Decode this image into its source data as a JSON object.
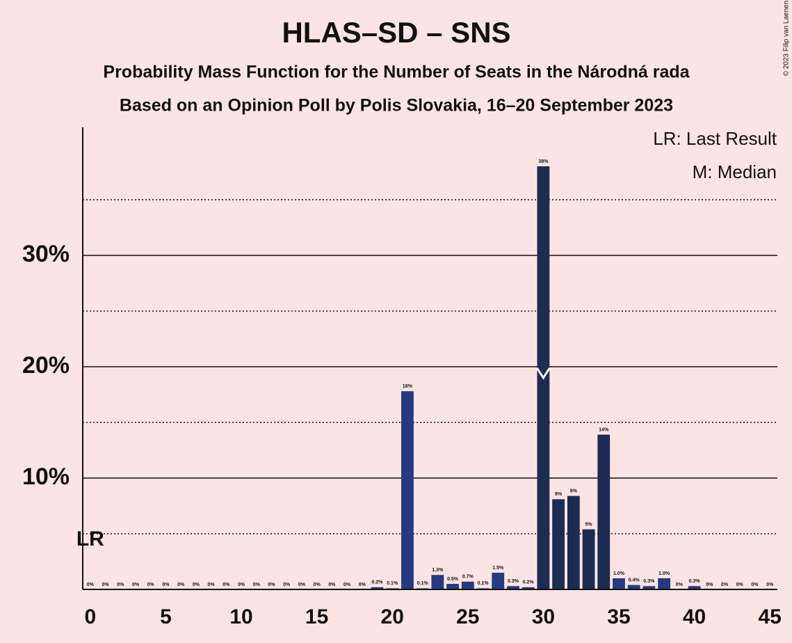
{
  "chart_data": {
    "type": "bar",
    "title": "HLAS–SD – SNS",
    "subtitle": [
      "Probability Mass Function for the Number of Seats in the Národná rada",
      "Based on an Opinion Poll by Polis Slovakia, 16–20 September 2023"
    ],
    "copyright": "© 2023 Filip van Laenen",
    "legend": [
      "LR: Last Result",
      "M: Median"
    ],
    "x": [
      0,
      1,
      2,
      3,
      4,
      5,
      6,
      7,
      8,
      9,
      10,
      11,
      12,
      13,
      14,
      15,
      16,
      17,
      18,
      19,
      20,
      21,
      22,
      23,
      24,
      25,
      26,
      27,
      28,
      29,
      30,
      31,
      32,
      33,
      34,
      35,
      36,
      37,
      38,
      39,
      40,
      41,
      42,
      43,
      44,
      45
    ],
    "values": [
      0,
      0,
      0,
      0,
      0,
      0,
      0,
      0,
      0,
      0,
      0,
      0,
      0,
      0,
      0,
      0,
      0,
      0,
      0,
      0.2,
      0.1,
      17.8,
      0.1,
      1.3,
      0.5,
      0.7,
      0.1,
      1.5,
      0.3,
      0.2,
      38,
      8.1,
      8.4,
      5.4,
      13.9,
      1.0,
      0.4,
      0.3,
      1.0,
      0,
      0.3,
      0,
      0,
      0,
      0,
      0
    ],
    "value_labels": [
      "0%",
      "0%",
      "0%",
      "0%",
      "0%",
      "0%",
      "0%",
      "0%",
      "0%",
      "0%",
      "0%",
      "0%",
      "0%",
      "0%",
      "0%",
      "0%",
      "0%",
      "0%",
      "0%",
      "0.2%",
      "0.1%",
      "18%",
      "0.1%",
      "1.3%",
      "0.5%",
      "0.7%",
      "0.1%",
      "1.5%",
      "0.3%",
      "0.2%",
      "38%",
      "8%",
      "8%",
      "5%",
      "14%",
      "1.0%",
      "0.4%",
      "0.3%",
      "1.0%",
      "0%",
      "0.3%",
      "0%",
      "0%",
      "0%",
      "0%",
      "0%"
    ],
    "colors": [
      "#253a80",
      "#253a80",
      "#253a80",
      "#253a80",
      "#253a80",
      "#253a80",
      "#253a80",
      "#253a80",
      "#253a80",
      "#253a80",
      "#253a80",
      "#253a80",
      "#253a80",
      "#253a80",
      "#253a80",
      "#253a80",
      "#253a80",
      "#253a80",
      "#253a80",
      "#253a80",
      "#253a80",
      "#253a80",
      "#253a80",
      "#253a80",
      "#253a80",
      "#253a80",
      "#253a80",
      "#253a80",
      "#253a80",
      "#253a80",
      "#1c2c52",
      "#1c2c52",
      "#1c2c52",
      "#1c2c52",
      "#1c2c52",
      "#253a80",
      "#253a80",
      "#253a80",
      "#253a80",
      "#253a80",
      "#253a80",
      "#253a80",
      "#253a80",
      "#253a80",
      "#253a80",
      "#253a80"
    ],
    "xlim": [
      -0.5,
      45.5
    ],
    "xticks": [
      0,
      5,
      10,
      15,
      20,
      25,
      30,
      35,
      40,
      45
    ],
    "ylim": [
      0,
      41.5
    ],
    "yticks": [
      {
        "value": 10,
        "label": "10%"
      },
      {
        "value": 20,
        "label": "20%"
      },
      {
        "value": 30,
        "label": "30%"
      }
    ],
    "minor_yticks": [
      5,
      15,
      25,
      35
    ],
    "median": 30,
    "last_result": {
      "x": 0,
      "label": "LR"
    }
  }
}
